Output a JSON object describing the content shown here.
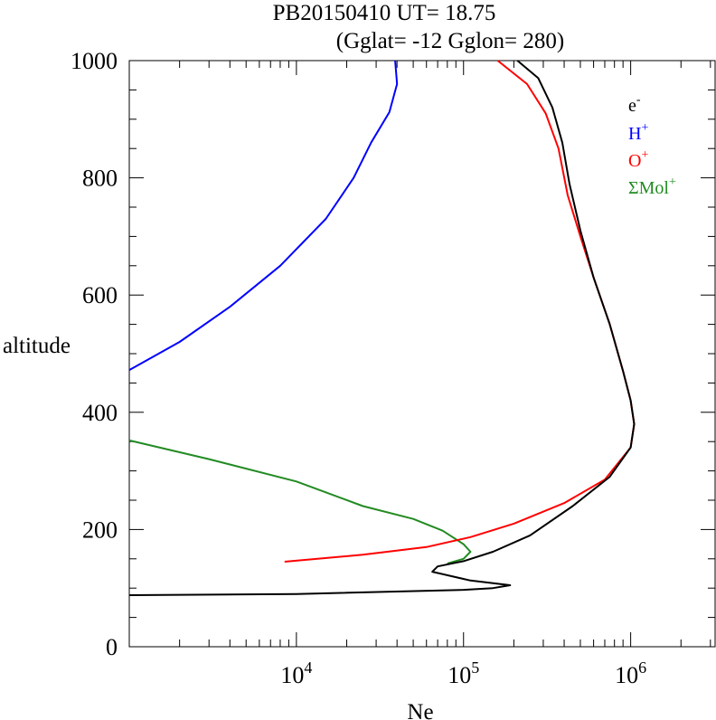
{
  "chart_data": {
    "type": "line",
    "title_line1": "PB20150410   UT=  18.75",
    "title_line2": "(Gglat= -12   Gglon=  280)",
    "xlabel": "Ne",
    "ylabel": "altitude",
    "x_scale": "log",
    "xlim": [
      1000,
      3200000
    ],
    "ylim": [
      0,
      1000
    ],
    "grid": false,
    "legend_position": "top-right",
    "x_major_ticks": [
      {
        "value": 10000,
        "base": "10",
        "exp": "4"
      },
      {
        "value": 100000,
        "base": "10",
        "exp": "5"
      },
      {
        "value": 1000000,
        "base": "10",
        "exp": "6"
      }
    ],
    "y_ticks": [
      {
        "value": 0,
        "label": "0"
      },
      {
        "value": 200,
        "label": "200"
      },
      {
        "value": 400,
        "label": "400"
      },
      {
        "value": 600,
        "label": "600"
      },
      {
        "value": 800,
        "label": "800"
      },
      {
        "value": 1000,
        "label": "1000"
      }
    ],
    "series": [
      {
        "name": "e",
        "name_sup": "-",
        "color": "#000000",
        "points": [
          [
            1000,
            88
          ],
          [
            10000,
            90
          ],
          [
            100000,
            97
          ],
          [
            150000,
            100
          ],
          [
            190000,
            105
          ],
          [
            110000,
            113
          ],
          [
            65000,
            128
          ],
          [
            70000,
            137
          ],
          [
            100000,
            146
          ],
          [
            150000,
            162
          ],
          [
            250000,
            190
          ],
          [
            450000,
            240
          ],
          [
            750000,
            290
          ],
          [
            1000000,
            340
          ],
          [
            1050000,
            380
          ],
          [
            1000000,
            420
          ],
          [
            900000,
            470
          ],
          [
            750000,
            550
          ],
          [
            600000,
            630
          ],
          [
            500000,
            710
          ],
          [
            430000,
            790
          ],
          [
            390000,
            860
          ],
          [
            340000,
            920
          ],
          [
            280000,
            970
          ],
          [
            210000,
            1000
          ]
        ]
      },
      {
        "name": "H",
        "name_sup": "+",
        "color": "#0000ff",
        "points": [
          [
            1000,
            472
          ],
          [
            2000,
            520
          ],
          [
            4000,
            580
          ],
          [
            8000,
            650
          ],
          [
            15000,
            730
          ],
          [
            22000,
            800
          ],
          [
            28000,
            860
          ],
          [
            36000,
            912
          ],
          [
            40000,
            960
          ],
          [
            39000,
            1000
          ]
        ]
      },
      {
        "name": "O",
        "name_sup": "+",
        "color": "#ff0000",
        "points": [
          [
            8500,
            145
          ],
          [
            25000,
            157
          ],
          [
            60000,
            170
          ],
          [
            110000,
            187
          ],
          [
            200000,
            210
          ],
          [
            400000,
            245
          ],
          [
            700000,
            285
          ],
          [
            1000000,
            340
          ],
          [
            1050000,
            380
          ],
          [
            1000000,
            420
          ],
          [
            900000,
            470
          ],
          [
            750000,
            550
          ],
          [
            600000,
            630
          ],
          [
            500000,
            700
          ],
          [
            420000,
            770
          ],
          [
            370000,
            850
          ],
          [
            310000,
            910
          ],
          [
            240000,
            960
          ],
          [
            160000,
            1000
          ]
        ]
      },
      {
        "name": "ΣMol",
        "name_sup": "+",
        "color": "#228b22",
        "points": [
          [
            1000,
            352
          ],
          [
            3000,
            320
          ],
          [
            10000,
            282
          ],
          [
            25000,
            240
          ],
          [
            50000,
            218
          ],
          [
            75000,
            198
          ],
          [
            100000,
            175
          ],
          [
            110000,
            162
          ],
          [
            100000,
            150
          ],
          [
            80000,
            142
          ]
        ]
      }
    ]
  }
}
